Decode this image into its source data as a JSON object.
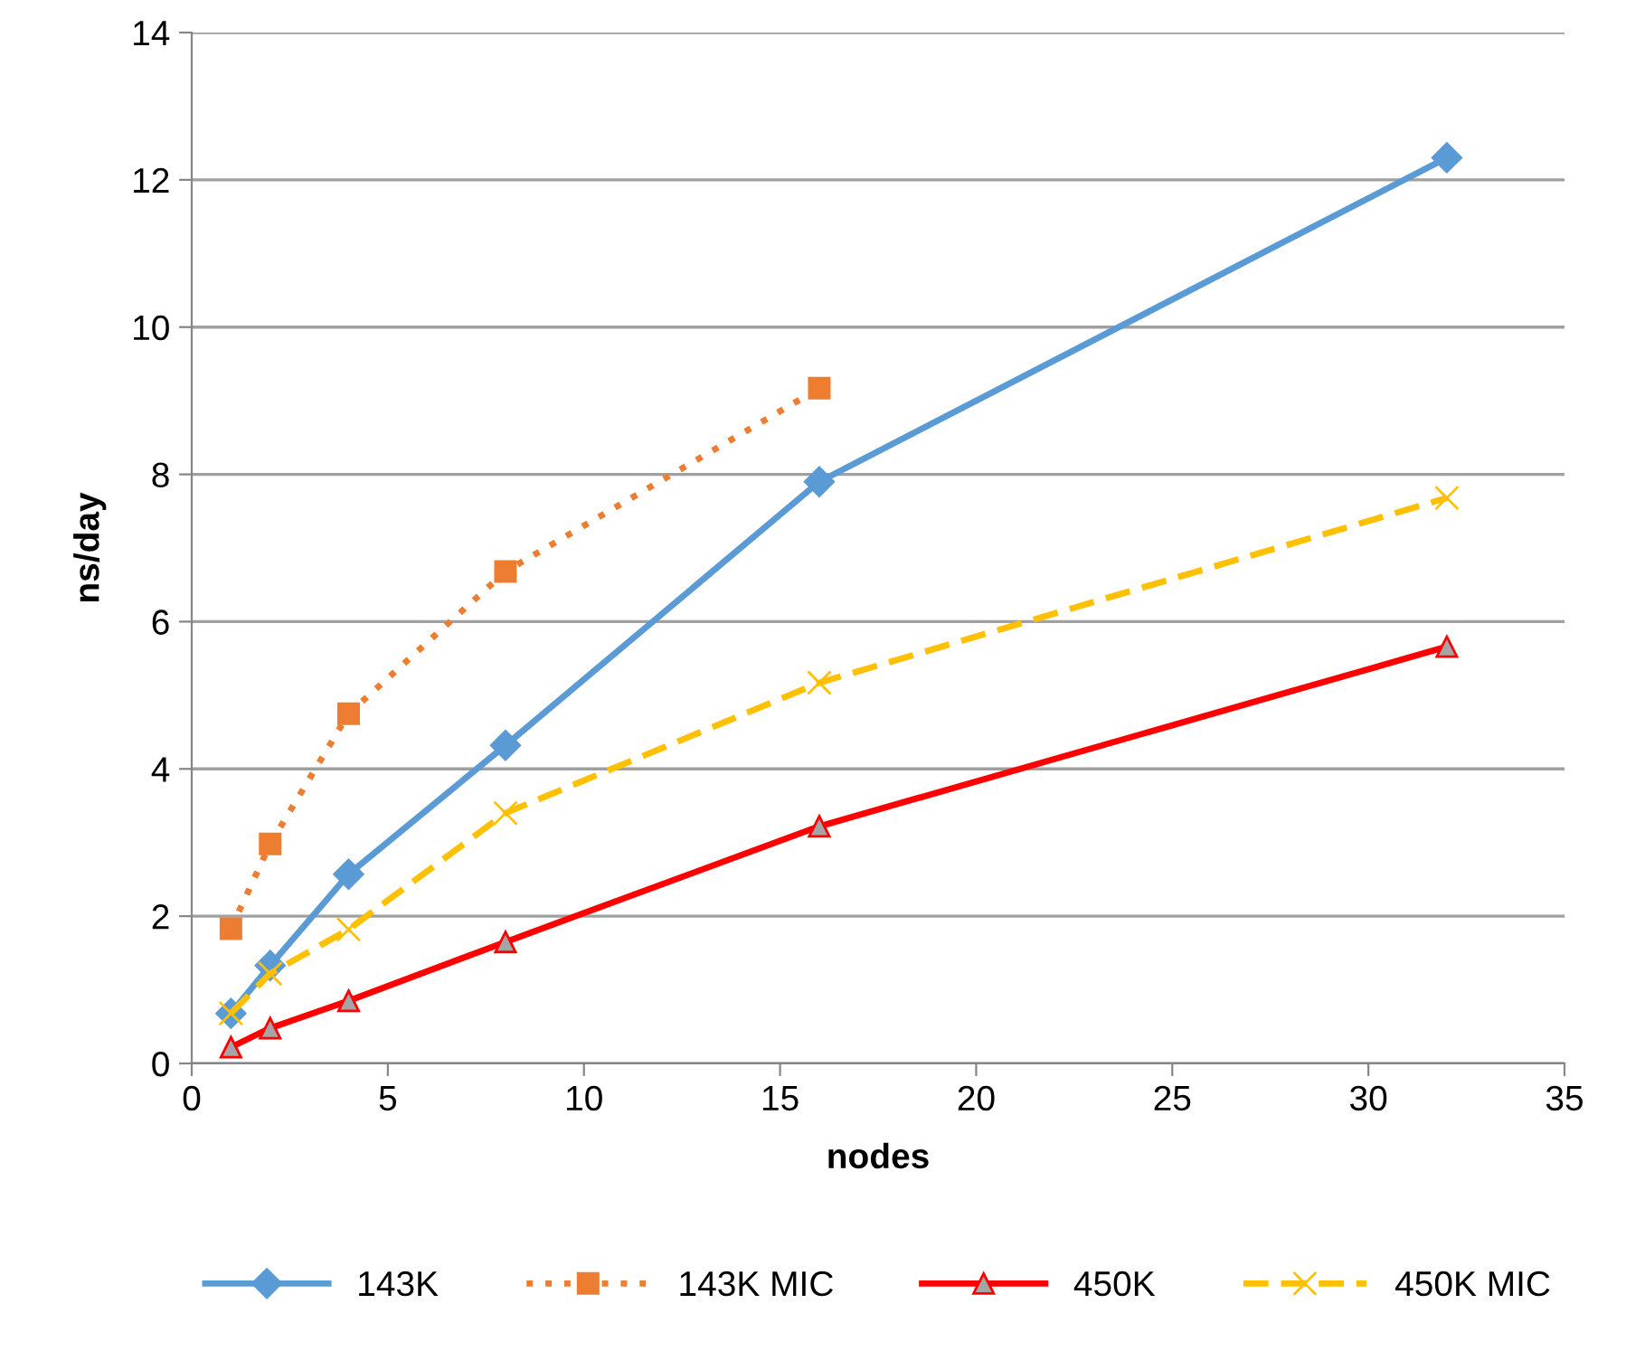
{
  "chart_data": {
    "type": "line",
    "xlabel": "nodes",
    "ylabel": "ns/day",
    "xlim": [
      0,
      35
    ],
    "xticks": [
      0,
      5,
      10,
      15,
      20,
      25,
      30,
      35
    ],
    "ylim": [
      0,
      14
    ],
    "yticks": [
      0,
      2,
      4,
      6,
      8,
      10,
      12,
      14
    ],
    "grid": "y",
    "legend": "bottom",
    "series": [
      {
        "name": "143K",
        "color": "#5b9bd5",
        "marker": "diamond",
        "line_style": "solid",
        "x": [
          1,
          2,
          4,
          8,
          16,
          32
        ],
        "values": [
          0.68,
          1.33,
          2.57,
          4.32,
          7.9,
          12.3
        ]
      },
      {
        "name": "143K MIC",
        "color": "#ed7d31",
        "marker": "square",
        "line_style": "dotted",
        "x": [
          1,
          2,
          4,
          8,
          16
        ],
        "values": [
          1.83,
          2.98,
          4.75,
          6.68,
          9.17
        ]
      },
      {
        "name": "450K",
        "color": "#ff0000",
        "marker": "triangle",
        "line_style": "solid",
        "x": [
          1,
          2,
          4,
          8,
          16,
          32
        ],
        "values": [
          0.22,
          0.48,
          0.85,
          1.65,
          3.22,
          5.66
        ]
      },
      {
        "name": "450K MIC",
        "color": "#ffc000",
        "marker": "cross",
        "line_style": "dashed",
        "x": [
          1,
          2,
          4,
          8,
          16,
          32
        ],
        "values": [
          0.68,
          1.22,
          1.82,
          3.4,
          5.17,
          7.68
        ]
      }
    ]
  }
}
